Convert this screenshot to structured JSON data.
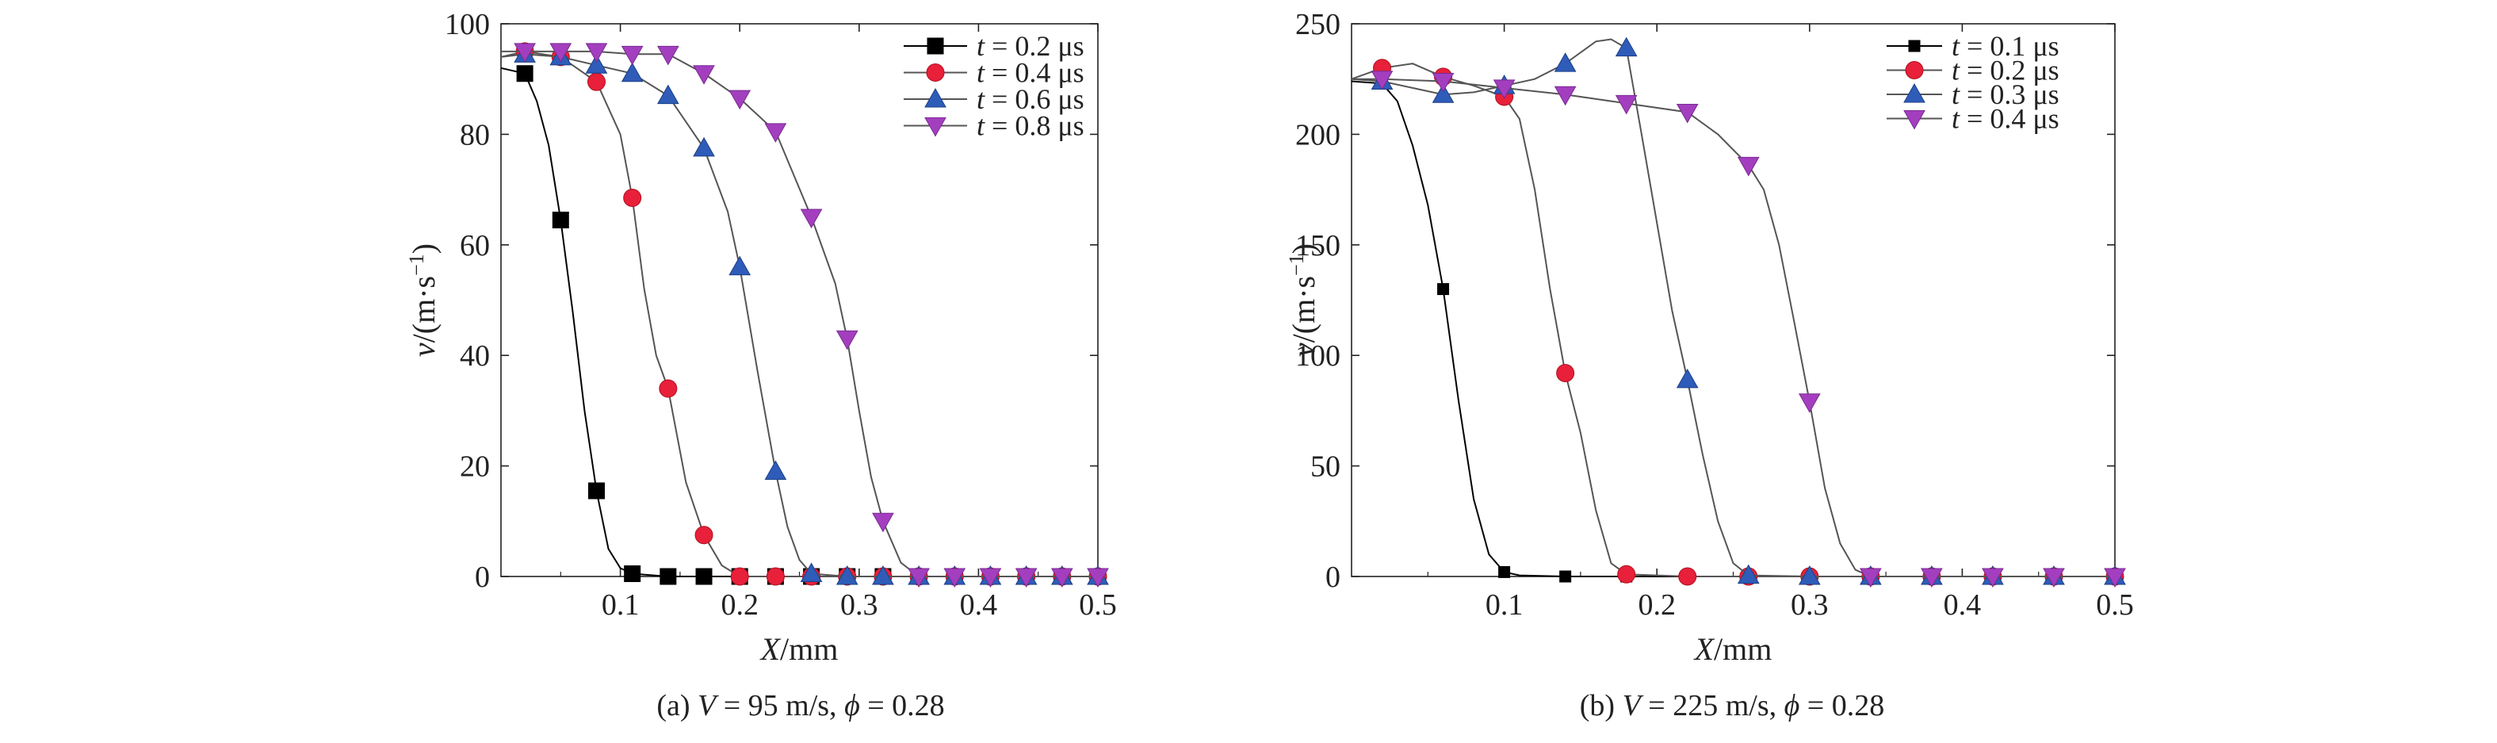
{
  "chart_data": [
    {
      "type": "line",
      "caption": {
        "prefix": "(a) ",
        "v": "V",
        "mid": " = 95 m/s, ",
        "phi": "ϕ",
        "end": " = 0.28"
      },
      "xlabel": {
        "var": "X",
        "unit": "/mm"
      },
      "ylabel": {
        "var": "v",
        "unit": "/(m·s",
        "exp": "−1",
        "close": ")"
      },
      "xlim": [
        0,
        0.5
      ],
      "ylim": [
        0,
        100
      ],
      "xticks": [
        "0.1",
        "0.2",
        "0.3",
        "0.4",
        "0.5"
      ],
      "yticks": [
        "0",
        "20",
        "40",
        "60",
        "80",
        "100"
      ],
      "grid": false,
      "legend_position": "top-right",
      "series": [
        {
          "name": "t = 0.2 μs",
          "label_var": "t",
          "label_val": " = 0.2 μs",
          "color": "#000000",
          "marker": "square",
          "x": [
            0,
            0.02,
            0.03,
            0.04,
            0.05,
            0.06,
            0.07,
            0.08,
            0.09,
            0.1,
            0.11,
            0.14,
            0.17,
            0.2,
            0.23,
            0.26,
            0.29,
            0.32,
            0.35,
            0.38,
            0.41,
            0.44,
            0.47,
            0.5
          ],
          "y": [
            92,
            91,
            86,
            78,
            64.5,
            48,
            30,
            15.5,
            5,
            1.5,
            0.5,
            0,
            0,
            0,
            0,
            0,
            0,
            0,
            0,
            0,
            0,
            0,
            0,
            0
          ],
          "mx": [
            0.02,
            0.05,
            0.08,
            0.11,
            0.14,
            0.17,
            0.2,
            0.23,
            0.26,
            0.29,
            0.32,
            0.35,
            0.38,
            0.41,
            0.44,
            0.47,
            0.5
          ],
          "my": [
            91,
            64.5,
            15.5,
            0.5,
            0,
            0,
            0,
            0,
            0,
            0,
            0,
            0,
            0,
            0,
            0,
            0,
            0
          ]
        },
        {
          "name": "t = 0.4 μs",
          "label_var": "t",
          "label_val": " = 0.4 μs",
          "color": "#e8203a",
          "marker": "circle",
          "x": [
            0,
            0.02,
            0.05,
            0.08,
            0.1,
            0.11,
            0.12,
            0.13,
            0.14,
            0.155,
            0.17,
            0.185,
            0.2,
            0.23,
            0.26,
            0.29,
            0.32,
            0.35,
            0.38,
            0.41,
            0.44,
            0.47,
            0.5
          ],
          "y": [
            94,
            95,
            94,
            89.5,
            80,
            68.5,
            52,
            40,
            34,
            17,
            7.5,
            2,
            0,
            0,
            0,
            0,
            0,
            0,
            0,
            0,
            0,
            0,
            0
          ],
          "mx": [
            0.02,
            0.05,
            0.08,
            0.11,
            0.14,
            0.17,
            0.2,
            0.23,
            0.26,
            0.29,
            0.32,
            0.35,
            0.38,
            0.41,
            0.44,
            0.47,
            0.5
          ],
          "my": [
            95,
            94,
            89.5,
            68.5,
            34,
            7.5,
            0,
            0,
            0,
            0,
            0,
            0,
            0,
            0,
            0,
            0,
            0
          ]
        },
        {
          "name": "t = 0.6 μs",
          "label_var": "t",
          "label_val": " = 0.6 μs",
          "color": "#2e5cb8",
          "marker": "triangle-up",
          "x": [
            0,
            0.02,
            0.05,
            0.08,
            0.11,
            0.14,
            0.17,
            0.19,
            0.2,
            0.215,
            0.23,
            0.24,
            0.25,
            0.26,
            0.29,
            0.32,
            0.35,
            0.38,
            0.41,
            0.44,
            0.47,
            0.5
          ],
          "y": [
            94,
            94.5,
            94,
            92.5,
            91,
            87,
            77.5,
            66,
            56,
            37,
            19,
            9,
            3,
            0.5,
            0,
            0,
            0,
            0,
            0,
            0,
            0,
            0
          ],
          "mx": [
            0.02,
            0.05,
            0.08,
            0.11,
            0.14,
            0.17,
            0.2,
            0.23,
            0.26,
            0.29,
            0.32,
            0.35,
            0.38,
            0.41,
            0.44,
            0.47,
            0.5
          ],
          "my": [
            94.5,
            94,
            92.5,
            91,
            87,
            77.5,
            56,
            19,
            0.5,
            0,
            0,
            0,
            0,
            0,
            0,
            0,
            0
          ]
        },
        {
          "name": "t = 0.8 μs",
          "label_var": "t",
          "label_val": " = 0.8 μs",
          "color": "#a33fbf",
          "marker": "triangle-down",
          "x": [
            0,
            0.02,
            0.05,
            0.08,
            0.11,
            0.14,
            0.17,
            0.2,
            0.23,
            0.26,
            0.28,
            0.29,
            0.3,
            0.31,
            0.32,
            0.335,
            0.35,
            0.38,
            0.41,
            0.44,
            0.47,
            0.5
          ],
          "y": [
            95,
            95,
            95,
            95,
            94.5,
            94.5,
            91,
            86.5,
            80.5,
            65,
            53,
            43,
            30,
            18,
            10,
            2.5,
            0,
            0,
            0,
            0,
            0,
            0
          ],
          "mx": [
            0.02,
            0.05,
            0.08,
            0.11,
            0.14,
            0.17,
            0.2,
            0.23,
            0.26,
            0.29,
            0.32,
            0.35,
            0.38,
            0.41,
            0.44,
            0.47,
            0.5
          ],
          "my": [
            95,
            95,
            95,
            94.5,
            94.5,
            91,
            86.5,
            80.5,
            65,
            43,
            10,
            0,
            0,
            0,
            0,
            0,
            0
          ]
        }
      ]
    },
    {
      "type": "line",
      "caption": {
        "prefix": "(b) ",
        "v": "V",
        "mid": " = 225 m/s, ",
        "phi": "ϕ",
        "end": " = 0.28"
      },
      "xlabel": {
        "var": "X",
        "unit": "/mm"
      },
      "ylabel": {
        "var": "v",
        "unit": "/(m·s",
        "exp": "−1",
        "close": ")"
      },
      "xlim": [
        0,
        0.5
      ],
      "ylim": [
        0,
        250
      ],
      "xticks": [
        "0.1",
        "0.2",
        "0.3",
        "0.4",
        "0.5"
      ],
      "yticks": [
        "0",
        "50",
        "100",
        "150",
        "200",
        "250"
      ],
      "grid": false,
      "legend_position": "top-right",
      "series": [
        {
          "name": "t = 0.1 μs",
          "label_var": "t",
          "label_val": " = 0.1 μs",
          "color": "#000000",
          "marker": "small-square",
          "x": [
            0,
            0.02,
            0.03,
            0.04,
            0.05,
            0.06,
            0.07,
            0.08,
            0.09,
            0.1,
            0.11,
            0.14,
            0.18,
            0.22,
            0.26,
            0.3,
            0.34,
            0.38,
            0.42,
            0.46,
            0.5
          ],
          "y": [
            224,
            223,
            215,
            195,
            168,
            130,
            80,
            35,
            10,
            2,
            0.5,
            0,
            0,
            0,
            0,
            0,
            0,
            0,
            0,
            0,
            0
          ],
          "mx": [
            0.02,
            0.06,
            0.1,
            0.14,
            0.18,
            0.22,
            0.26,
            0.3,
            0.34,
            0.38,
            0.42,
            0.46,
            0.5
          ],
          "my": [
            223,
            130,
            2,
            0,
            0,
            0,
            0,
            0,
            0,
            0,
            0,
            0,
            0
          ]
        },
        {
          "name": "t = 0.2 μs",
          "label_var": "t",
          "label_val": " = 0.2 μs",
          "color": "#e8203a",
          "marker": "circle",
          "x": [
            0,
            0.02,
            0.04,
            0.06,
            0.08,
            0.1,
            0.11,
            0.12,
            0.13,
            0.14,
            0.15,
            0.16,
            0.17,
            0.18,
            0.22,
            0.26,
            0.3,
            0.34,
            0.38,
            0.42,
            0.46,
            0.5
          ],
          "y": [
            225,
            230,
            232,
            226,
            222,
            217,
            207,
            175,
            130,
            92,
            65,
            30,
            6,
            1,
            0,
            0,
            0,
            0,
            0,
            0,
            0,
            0
          ],
          "mx": [
            0.02,
            0.06,
            0.1,
            0.14,
            0.18,
            0.22,
            0.26,
            0.3,
            0.34,
            0.38,
            0.42,
            0.46,
            0.5
          ],
          "my": [
            230,
            226,
            217,
            92,
            1,
            0,
            0,
            0,
            0,
            0,
            0,
            0,
            0
          ]
        },
        {
          "name": "t = 0.3 μs",
          "label_var": "t",
          "label_val": " = 0.3 μs",
          "color": "#2e5cb8",
          "marker": "triangle-up",
          "x": [
            0,
            0.02,
            0.04,
            0.06,
            0.08,
            0.1,
            0.12,
            0.14,
            0.16,
            0.17,
            0.18,
            0.19,
            0.2,
            0.21,
            0.22,
            0.23,
            0.24,
            0.25,
            0.26,
            0.3,
            0.34,
            0.38,
            0.42,
            0.46,
            0.5
          ],
          "y": [
            225,
            224,
            221,
            218,
            219,
            222,
            225,
            232,
            242,
            243,
            239,
            200,
            160,
            120,
            89,
            55,
            25,
            6,
            0.5,
            0,
            0,
            0,
            0,
            0,
            0
          ],
          "mx": [
            0.02,
            0.06,
            0.1,
            0.14,
            0.18,
            0.22,
            0.26,
            0.3,
            0.34,
            0.38,
            0.42,
            0.46,
            0.5
          ],
          "my": [
            224,
            218,
            222,
            232,
            239,
            89,
            0.5,
            0,
            0,
            0,
            0,
            0,
            0
          ]
        },
        {
          "name": "t = 0.4 μs",
          "label_var": "t",
          "label_val": " = 0.4 μs",
          "color": "#a33fbf",
          "marker": "triangle-down",
          "x": [
            0,
            0.02,
            0.06,
            0.1,
            0.14,
            0.18,
            0.22,
            0.24,
            0.26,
            0.27,
            0.28,
            0.29,
            0.3,
            0.31,
            0.32,
            0.33,
            0.34,
            0.38,
            0.42,
            0.46,
            0.5
          ],
          "y": [
            225,
            225,
            224,
            221,
            218,
            214,
            210,
            200,
            186,
            175,
            150,
            115,
            79,
            40,
            15,
            3,
            0,
            0,
            0,
            0,
            0
          ],
          "mx": [
            0.02,
            0.06,
            0.1,
            0.14,
            0.18,
            0.22,
            0.26,
            0.3,
            0.34,
            0.38,
            0.42,
            0.46,
            0.5
          ],
          "my": [
            225,
            224,
            221,
            218,
            214,
            210,
            186,
            79,
            0,
            0,
            0,
            0,
            0
          ]
        }
      ]
    }
  ]
}
